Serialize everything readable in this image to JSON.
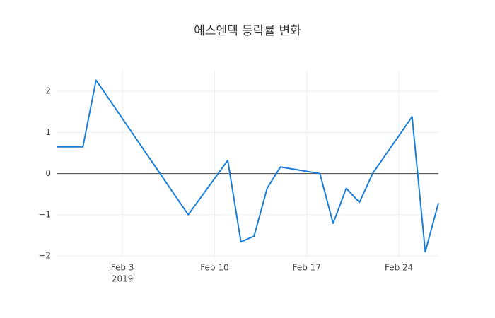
{
  "chart_data": {
    "type": "line",
    "title": "에스엔텍 등락률 변화",
    "x": [
      "2019-01-29",
      "2019-01-30",
      "2019-01-31",
      "2019-02-01",
      "2019-02-08",
      "2019-02-11",
      "2019-02-12",
      "2019-02-13",
      "2019-02-14",
      "2019-02-15",
      "2019-02-18",
      "2019-02-19",
      "2019-02-20",
      "2019-02-21",
      "2019-02-22",
      "2019-02-25",
      "2019-02-26",
      "2019-02-27"
    ],
    "series": [
      {
        "color": "#1a7ed8",
        "values": [
          0.65,
          0.65,
          0.65,
          2.27,
          -1.0,
          0.32,
          -1.66,
          -1.52,
          -0.35,
          0.16,
          0.0,
          -1.21,
          -0.36,
          -0.7,
          0.0,
          1.38,
          -1.9,
          -0.72
        ]
      }
    ],
    "xlim": [
      "2019-01-29",
      "2019-02-27"
    ],
    "xticks": [
      {
        "value": "2019-02-03",
        "label": "Feb 3"
      },
      {
        "value": "2019-02-10",
        "label": "Feb 10"
      },
      {
        "value": "2019-02-17",
        "label": "Feb 17"
      },
      {
        "value": "2019-02-24",
        "label": "Feb 24"
      }
    ],
    "xtick_year": "2019",
    "ylim": [
      -2.05,
      2.5
    ],
    "yticks": [
      {
        "value": -2,
        "label": "−2"
      },
      {
        "value": -1,
        "label": "−1"
      },
      0,
      1,
      2
    ],
    "grid": true,
    "zeroline": true
  }
}
